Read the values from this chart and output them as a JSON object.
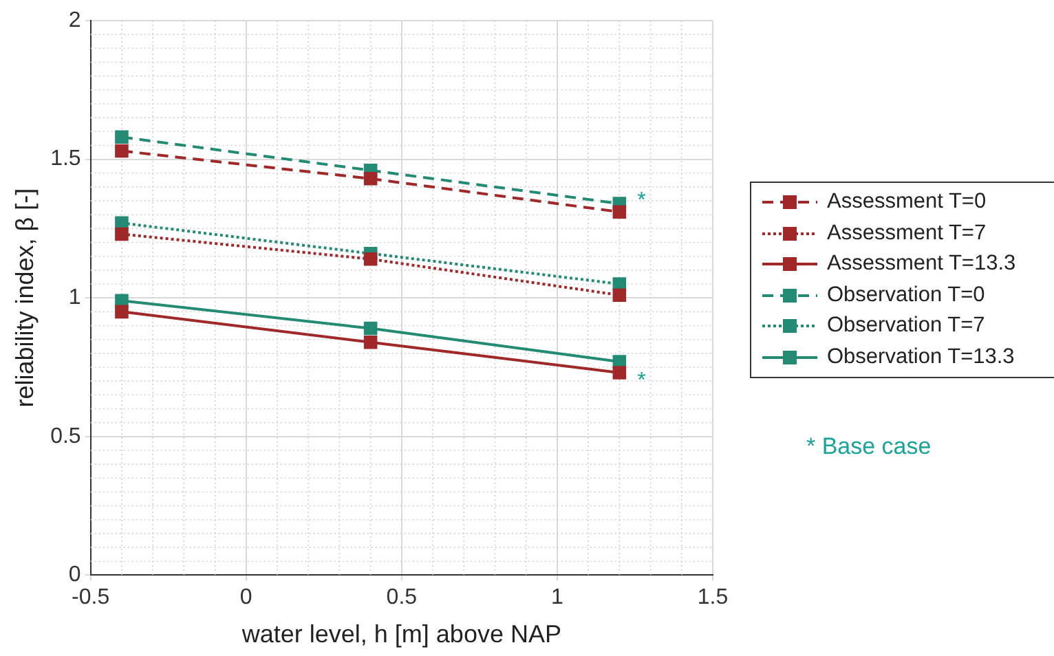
{
  "chart_data": {
    "type": "line",
    "xlabel": "water level, h [m] above NAP",
    "ylabel": "reliability index, β [-]",
    "x": [
      -0.4,
      0.4,
      1.2
    ],
    "xlim": [
      -0.5,
      1.5
    ],
    "xticks": [
      -0.5,
      0,
      0.5,
      1,
      1.5
    ],
    "ylim": [
      0,
      2
    ],
    "yticks": [
      0,
      0.5,
      1,
      1.5,
      2
    ],
    "grid": true,
    "legend": "right",
    "marker": "square",
    "series": [
      {
        "name": "Assessment T=0",
        "color": "#a02828",
        "line_style": "dashed",
        "values": [
          1.53,
          1.43,
          1.31
        ]
      },
      {
        "name": "Assessment T=7",
        "color": "#a02828",
        "line_style": "dotted",
        "values": [
          1.23,
          1.14,
          1.01
        ]
      },
      {
        "name": "Assessment T=13.3",
        "color": "#a02828",
        "line_style": "solid",
        "values": [
          0.95,
          0.84,
          0.73
        ]
      },
      {
        "name": "Observation T=0",
        "color": "#238b74",
        "line_style": "dashed",
        "values": [
          1.58,
          1.46,
          1.34
        ]
      },
      {
        "name": "Observation T=7",
        "color": "#238b74",
        "line_style": "dotted",
        "values": [
          1.27,
          1.16,
          1.05
        ]
      },
      {
        "name": "Observation T=13.3",
        "color": "#238b74",
        "line_style": "solid",
        "values": [
          0.99,
          0.89,
          0.77
        ]
      }
    ],
    "annotations": [
      "*",
      "*",
      "* Base case"
    ]
  }
}
